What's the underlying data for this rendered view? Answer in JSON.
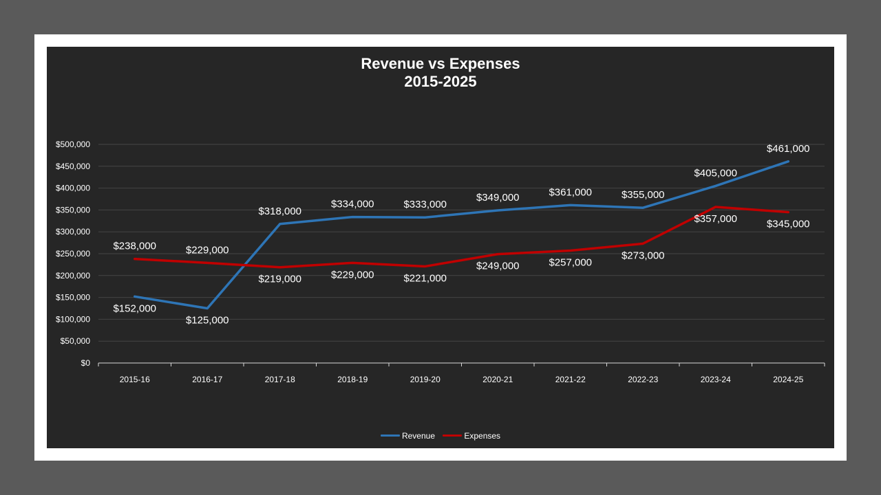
{
  "chart_data": {
    "type": "line",
    "title": "Revenue vs Expenses",
    "subtitle": "2015-2025",
    "categories": [
      "2015-16",
      "2016-17",
      "2017-18",
      "2018-19",
      "2019-20",
      "2020-21",
      "2021-22",
      "2022-23",
      "2023-24",
      "2024-25"
    ],
    "ylim": [
      0,
      500000
    ],
    "yticks": [
      0,
      50000,
      100000,
      150000,
      200000,
      250000,
      300000,
      350000,
      400000,
      450000,
      500000
    ],
    "ytick_labels": [
      "$0",
      "$50,000",
      "$100,000",
      "$150,000",
      "$200,000",
      "$250,000",
      "$300,000",
      "$350,000",
      "$400,000",
      "$450,000",
      "$500,000"
    ],
    "grid": true,
    "legend_position": "bottom",
    "series": [
      {
        "name": "Revenue",
        "color": "#2e75b6",
        "values": [
          152000,
          125000,
          318000,
          334000,
          333000,
          349000,
          361000,
          355000,
          405000,
          461000
        ],
        "labels": [
          "$152,000",
          "$125,000",
          "$318,000",
          "$334,000",
          "$333,000",
          "$349,000",
          "$361,000",
          "$355,000",
          "$405,000",
          "$461,000"
        ]
      },
      {
        "name": "Expenses",
        "color": "#c00000",
        "values": [
          238000,
          229000,
          219000,
          229000,
          221000,
          249000,
          257000,
          273000,
          357000,
          345000
        ],
        "labels": [
          "$238,000",
          "$229,000",
          "$219,000",
          "$229,000",
          "$221,000",
          "$249,000",
          "$257,000",
          "$273,000",
          "$357,000",
          "$345,000"
        ]
      }
    ]
  },
  "legend": {
    "revenue_label": "Revenue",
    "expenses_label": "Expenses"
  }
}
